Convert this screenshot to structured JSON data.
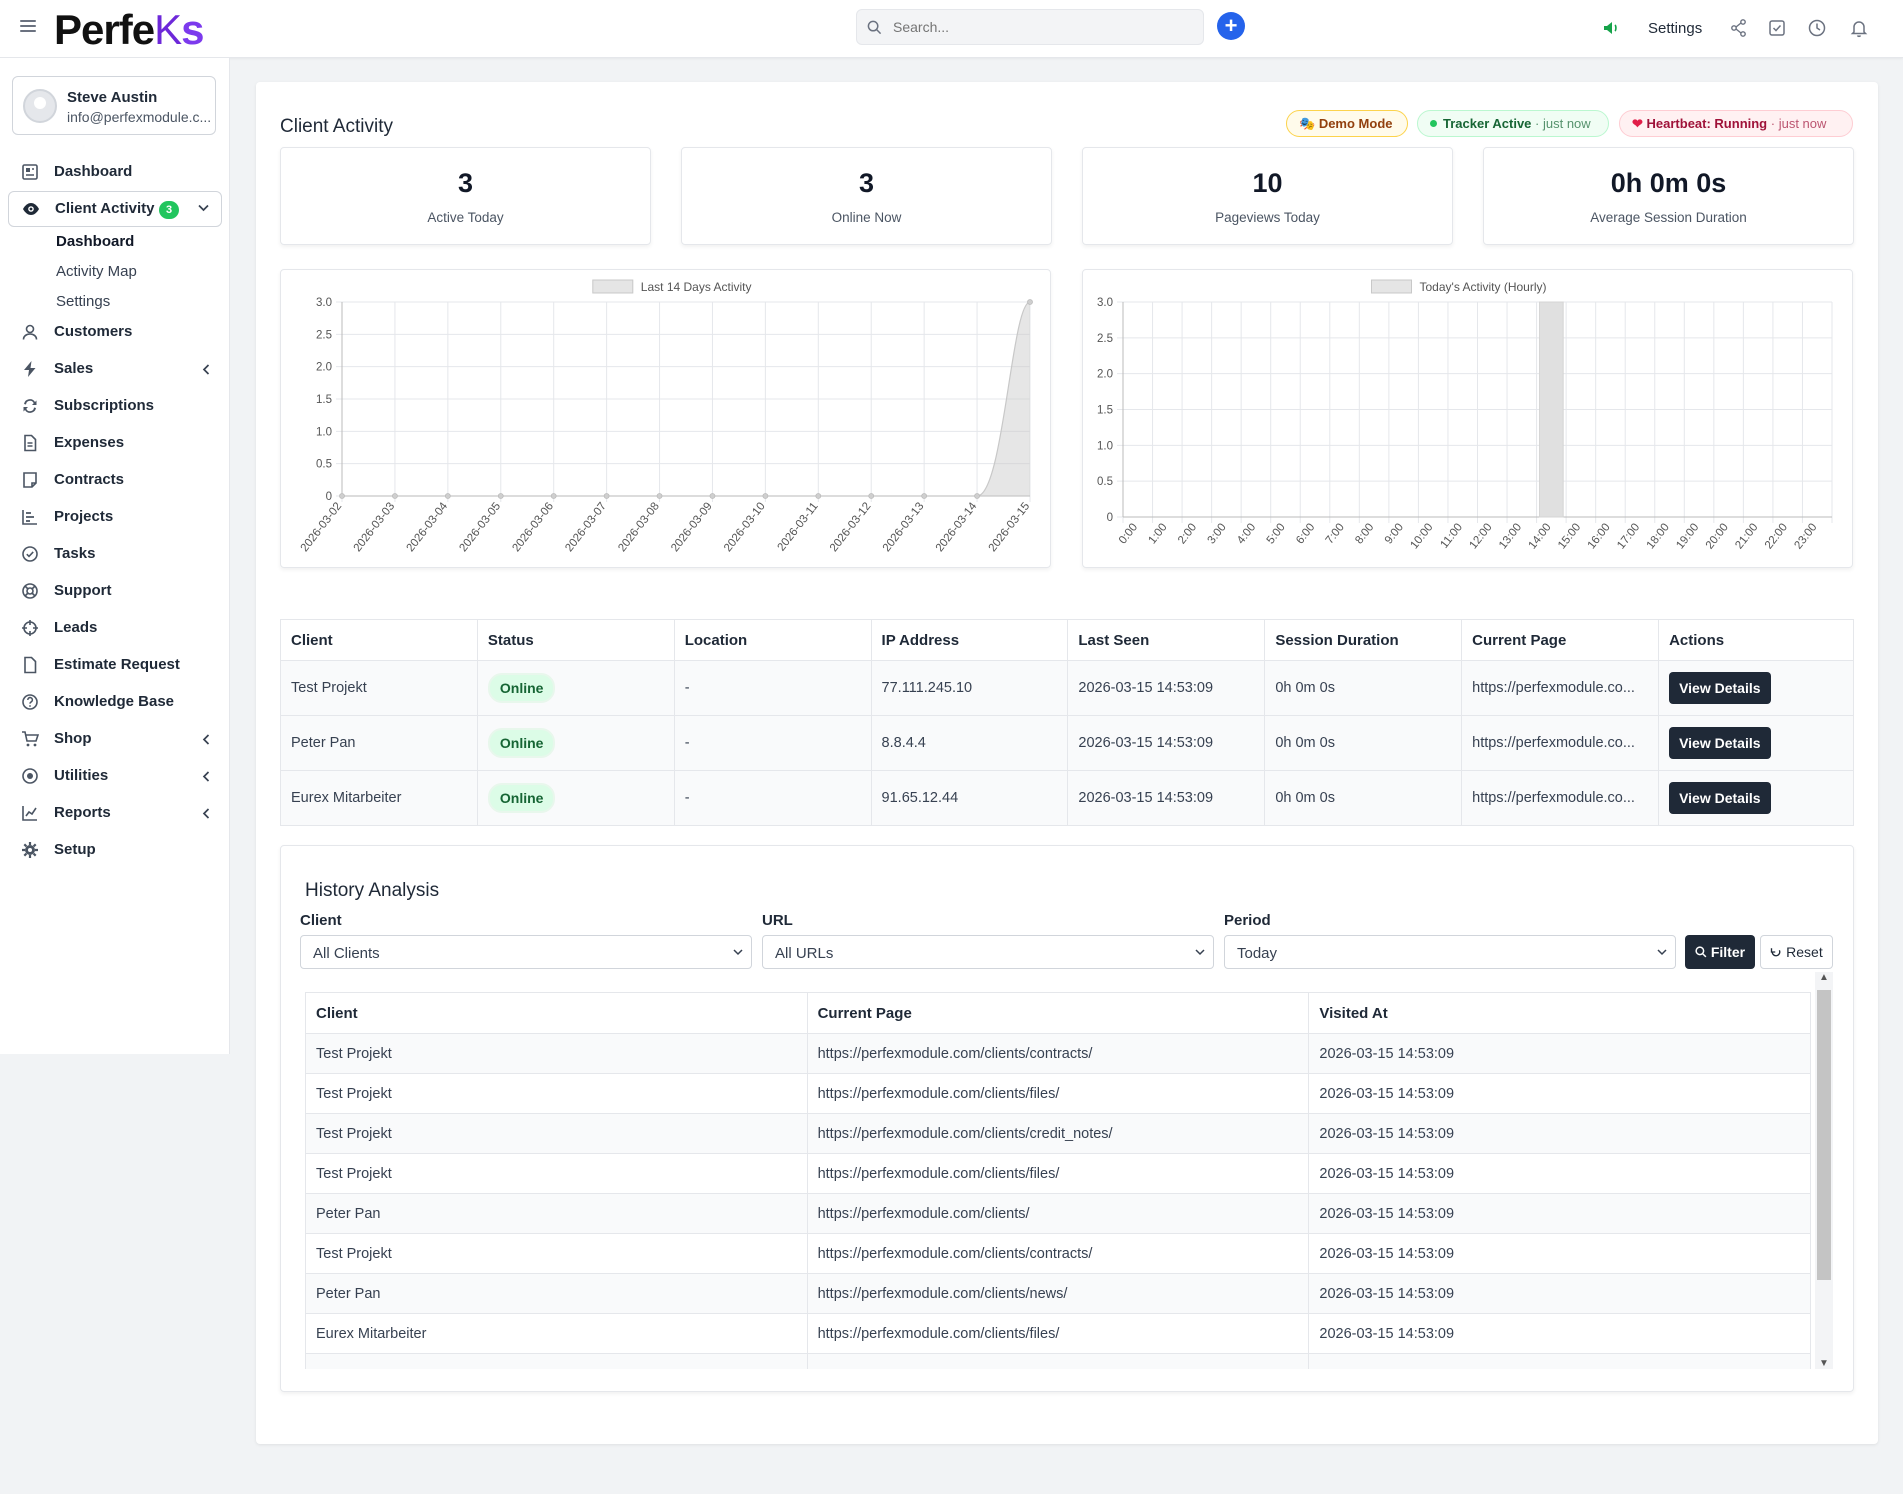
{
  "brand": {
    "logo_a": "Perfe",
    "logo_b": "K",
    "logo_c": "s"
  },
  "search": {
    "placeholder": "Search..."
  },
  "topbar": {
    "settings_label": "Settings"
  },
  "profile": {
    "name": "Steve Austin",
    "email": "info@perfexmodule.c..."
  },
  "nav": {
    "dashboard": "Dashboard",
    "client_activity": "Client Activity",
    "client_activity_badge": "3",
    "sub": [
      "Dashboard",
      "Activity Map",
      "Settings"
    ],
    "customers": "Customers",
    "sales": "Sales",
    "subscriptions": "Subscriptions",
    "expenses": "Expenses",
    "contracts": "Contracts",
    "projects": "Projects",
    "tasks": "Tasks",
    "support": "Support",
    "leads": "Leads",
    "estimate_request": "Estimate Request",
    "knowledge_base": "Knowledge Base",
    "shop": "Shop",
    "utilities": "Utilities",
    "reports": "Reports",
    "setup": "Setup"
  },
  "page": {
    "title": "Client Activity"
  },
  "status_pills": {
    "demo": "Demo Mode",
    "tracker": "Tracker Active",
    "tracker_time": "· just now",
    "heartbeat": "Heartbeat: Running",
    "heartbeat_time": "· just now"
  },
  "stats": [
    {
      "value": "3",
      "label": "Active Today"
    },
    {
      "value": "3",
      "label": "Online Now"
    },
    {
      "value": "10",
      "label": "Pageviews Today"
    },
    {
      "value": "0h 0m 0s",
      "label": "Average Session Duration"
    }
  ],
  "chart_data": [
    {
      "type": "area",
      "title": "",
      "legend": "Last 14 Days Activity",
      "x": [
        "2026-03-02",
        "2026-03-03",
        "2026-03-04",
        "2026-03-05",
        "2026-03-06",
        "2026-03-07",
        "2026-03-08",
        "2026-03-09",
        "2026-03-10",
        "2026-03-11",
        "2026-03-12",
        "2026-03-13",
        "2026-03-14",
        "2026-03-15"
      ],
      "values": [
        0,
        0,
        0,
        0,
        0,
        0,
        0,
        0,
        0,
        0,
        0,
        0,
        0,
        3
      ],
      "ylim": [
        0,
        3
      ],
      "yticks": [
        "0",
        "0.5",
        "1.0",
        "1.5",
        "2.0",
        "2.5",
        "3.0"
      ],
      "xlabel": "",
      "ylabel": ""
    },
    {
      "type": "bar",
      "title": "",
      "legend": "Today's Activity (Hourly)",
      "categories": [
        "0:00",
        "1:00",
        "2:00",
        "3:00",
        "4:00",
        "5:00",
        "6:00",
        "7:00",
        "8:00",
        "9:00",
        "10:00",
        "11:00",
        "12:00",
        "13:00",
        "14:00",
        "15:00",
        "16:00",
        "17:00",
        "18:00",
        "19:00",
        "20:00",
        "21:00",
        "22:00",
        "23:00"
      ],
      "values": [
        0,
        0,
        0,
        0,
        0,
        0,
        0,
        0,
        0,
        0,
        0,
        0,
        0,
        0,
        3,
        0,
        0,
        0,
        0,
        0,
        0,
        0,
        0,
        0
      ],
      "ylim": [
        0,
        3
      ],
      "yticks": [
        "0",
        "0.5",
        "1.0",
        "1.5",
        "2.0",
        "2.5",
        "3.0"
      ],
      "xlabel": "",
      "ylabel": ""
    }
  ],
  "clients_table": {
    "headers": [
      "Client",
      "Status",
      "Location",
      "IP Address",
      "Last Seen",
      "Session Duration",
      "Current Page",
      "Actions"
    ],
    "rows": [
      {
        "client": "Test Projekt",
        "status": "Online",
        "location": "-",
        "ip": "77.111.245.10",
        "last_seen": "2026-03-15 14:53:09",
        "duration": "0h 0m 0s",
        "page": "https://perfexmodule.co...",
        "action": "View Details"
      },
      {
        "client": "Peter Pan",
        "status": "Online",
        "location": "-",
        "ip": "8.8.4.4",
        "last_seen": "2026-03-15 14:53:09",
        "duration": "0h 0m 0s",
        "page": "https://perfexmodule.co...",
        "action": "View Details"
      },
      {
        "client": "Eurex Mitarbeiter",
        "status": "Online",
        "location": "-",
        "ip": "91.65.12.44",
        "last_seen": "2026-03-15 14:53:09",
        "duration": "0h 0m 0s",
        "page": "https://perfexmodule.co...",
        "action": "View Details"
      }
    ]
  },
  "history": {
    "title": "History Analysis",
    "client_label": "Client",
    "client_value": "All Clients",
    "url_label": "URL",
    "url_value": "All URLs",
    "period_label": "Period",
    "period_value": "Today",
    "filter_label": "Filter",
    "reset_label": "Reset",
    "headers": [
      "Client",
      "Current Page",
      "Visited At"
    ],
    "rows": [
      {
        "client": "Test Projekt",
        "page": "https://perfexmodule.com/clients/contracts/",
        "visited": "2026-03-15 14:53:09"
      },
      {
        "client": "Test Projekt",
        "page": "https://perfexmodule.com/clients/files/",
        "visited": "2026-03-15 14:53:09"
      },
      {
        "client": "Test Projekt",
        "page": "https://perfexmodule.com/clients/credit_notes/",
        "visited": "2026-03-15 14:53:09"
      },
      {
        "client": "Test Projekt",
        "page": "https://perfexmodule.com/clients/files/",
        "visited": "2026-03-15 14:53:09"
      },
      {
        "client": "Peter Pan",
        "page": "https://perfexmodule.com/clients/",
        "visited": "2026-03-15 14:53:09"
      },
      {
        "client": "Test Projekt",
        "page": "https://perfexmodule.com/clients/contracts/",
        "visited": "2026-03-15 14:53:09"
      },
      {
        "client": "Peter Pan",
        "page": "https://perfexmodule.com/clients/news/",
        "visited": "2026-03-15 14:53:09"
      },
      {
        "client": "Eurex Mitarbeiter",
        "page": "https://perfexmodule.com/clients/files/",
        "visited": "2026-03-15 14:53:09"
      },
      {
        "client": "",
        "page": "",
        "visited": ""
      }
    ]
  },
  "colors": {
    "accent": "#2563eb",
    "dark": "#1f2937",
    "online_bg": "#dcfce7",
    "online_fg": "#166534"
  }
}
